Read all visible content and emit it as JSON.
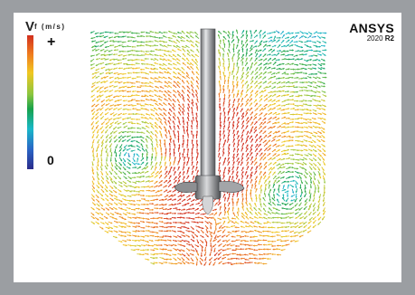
{
  "legend": {
    "symbol": "V",
    "subscript": "f (m/s)",
    "max_label": "+",
    "min_label": "0",
    "colors": [
      "#d22f1e",
      "#ef7b1e",
      "#f0c721",
      "#8cc63f",
      "#18a24b",
      "#19b8c9",
      "#2a66c6",
      "#2a2b8a"
    ]
  },
  "brand": {
    "name": "ANSYS",
    "version_year": "2020",
    "version_release": "R2"
  }
}
